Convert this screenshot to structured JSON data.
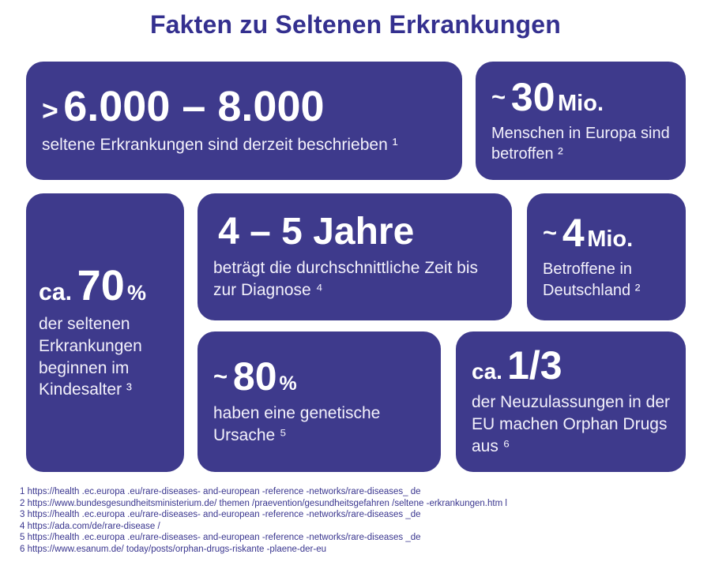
{
  "title": "Fakten zu Seltenen Erkrankungen",
  "colors": {
    "page_bg": "#ffffff",
    "card_bg": "#3e3a8c",
    "title_text": "#34308f",
    "card_number_text": "#ffffff",
    "card_sub_text": "#f3f1fb",
    "footnote_text": "#3a368f"
  },
  "cards": [
    {
      "name": "described-diseases",
      "prefix": ">",
      "number": "6.000 – 8.000",
      "suffix": "",
      "description": "seltene Erkrankungen sind derzeit beschrieben ¹"
    },
    {
      "name": "europe-affected",
      "prefix": "~",
      "number": "30",
      "suffix": "Mio.",
      "description": "Menschen in Europa sind betroffen ²"
    },
    {
      "name": "childhood-onset",
      "prefix": "ca.",
      "number": "70",
      "suffix": "%",
      "description": "der seltenen Erkrankungen beginnen im Kindesalter ³"
    },
    {
      "name": "diagnosis-time",
      "prefix": "",
      "number": "4 – 5 Jahre",
      "suffix": "",
      "description": "beträgt die durchschnittliche Zeit bis zur Diagnose ⁴"
    },
    {
      "name": "germany-affected",
      "prefix": "~",
      "number": "4",
      "suffix": "Mio.",
      "description": "Betroffene in Deutschland ²"
    },
    {
      "name": "genetic-cause",
      "prefix": "~",
      "number": "80",
      "suffix": "%",
      "description": "haben eine genetische Ursache ⁵"
    },
    {
      "name": "orphan-drugs",
      "prefix": "ca.",
      "number": "1/3",
      "suffix": "",
      "description": "der Neuzulassungen in der EU machen Orphan Drugs aus ⁶"
    }
  ],
  "footnotes": [
    "1 https://health .ec.europa .eu/rare-diseases- and-european -reference -networks/rare-diseases_ de",
    "2 https://www.bundesgesundheitsministerium.de/ themen /praevention/gesundheitsgefahren /seltene -erkrankungen.htm l",
    "3 https://health .ec.europa .eu/rare-diseases- and-european -reference -networks/rare-diseases _de",
    "4 https://ada.com/de/rare-disease /",
    "5 https://health .ec.europa .eu/rare-diseases- and-european -reference -networks/rare-diseases _de",
    "6 https://www.esanum.de/ today/posts/orphan-drugs-riskante -plaene-der-eu"
  ]
}
